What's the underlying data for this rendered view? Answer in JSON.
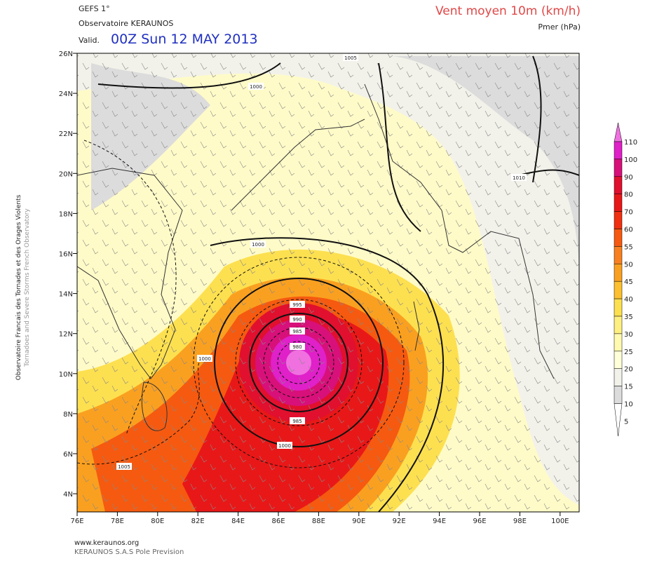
{
  "header": {
    "model": "GEFS 1°",
    "source": "Observatoire KERAUNOS",
    "valid_label": "Valid.",
    "valid_time": "00Z Sun 12 MAY 2013",
    "field": "Vent moyen 10m (km/h)",
    "contour_field": "Pmer (hPa)"
  },
  "map": {
    "lat_labels": [
      "26N",
      "24N",
      "22N",
      "20N",
      "18N",
      "16N",
      "14N",
      "12N",
      "10N",
      "8N",
      "6N",
      "4N"
    ],
    "lon_labels": [
      "76E",
      "78E",
      "80E",
      "82E",
      "84E",
      "86E",
      "88E",
      "90E",
      "92E",
      "94E",
      "96E",
      "98E",
      "100E"
    ],
    "isobar_labels": [
      1005,
      1000,
      1000,
      1000,
      995,
      990,
      985,
      980,
      985,
      1000,
      1005,
      1010
    ]
  },
  "colorbar": {
    "ticks": [
      110,
      100,
      90,
      80,
      70,
      60,
      55,
      50,
      45,
      40,
      35,
      30,
      25,
      20,
      15,
      10,
      5
    ],
    "colors": [
      "#f070e0",
      "#e020c8",
      "#d8107a",
      "#e0102e",
      "#e81818",
      "#f03010",
      "#f55a10",
      "#f88020",
      "#faa020",
      "#fcc030",
      "#fde050",
      "#fef080",
      "#fffab0",
      "#ffffd8",
      "#f2f2ea",
      "#dcdcdc",
      "#ffffff"
    ]
  },
  "side_text": {
    "fr": "Observatoire Francais des Tornades et des Orages Violents",
    "en": "Tornadoes and Severe Storms French Observatory"
  },
  "footer": {
    "url": "www.keraunos.org",
    "company": "KERAUNOS S.A.S Pole Prevision"
  }
}
